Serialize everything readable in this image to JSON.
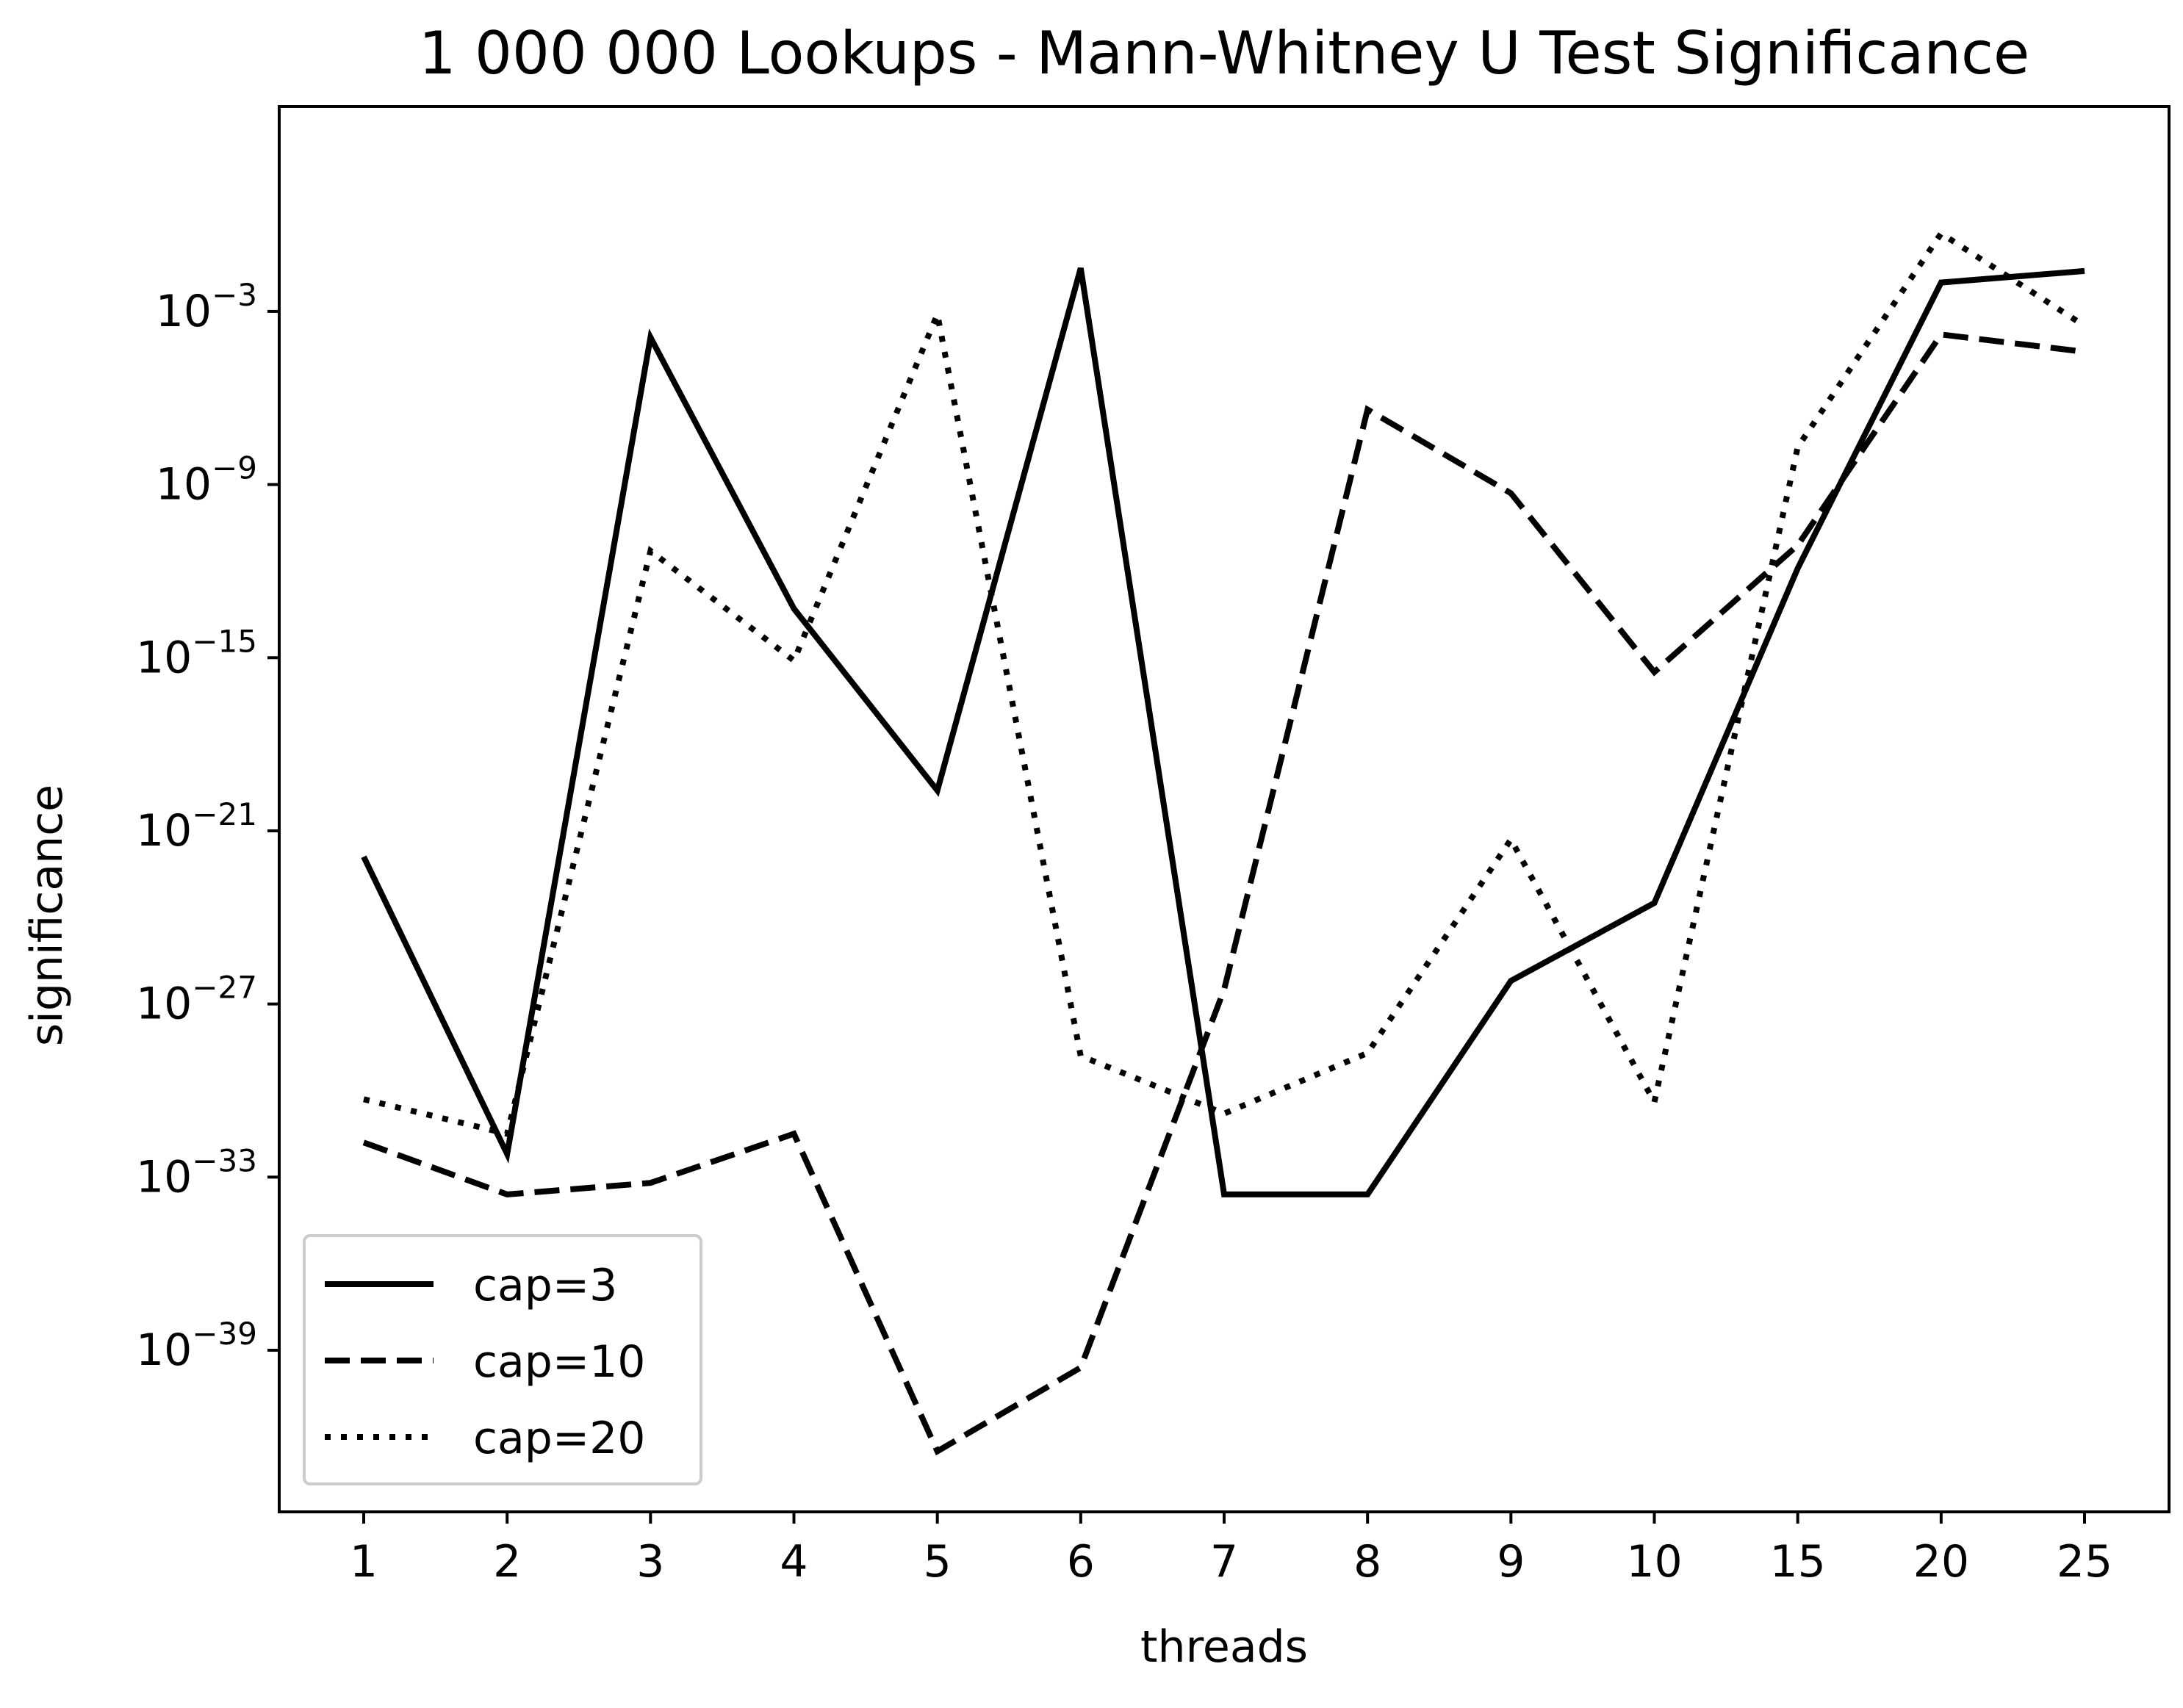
{
  "chart_data": {
    "type": "line",
    "title": "1 000 000 Lookups - Mann-Whitney U Test Significance",
    "xlabel": "threads",
    "ylabel": "significance",
    "categories": [
      "1",
      "2",
      "3",
      "4",
      "5",
      "6",
      "7",
      "8",
      "9",
      "10",
      "15",
      "20",
      "25"
    ],
    "y_scale": "log",
    "y_exponent_range": [
      -44.6,
      4.1
    ],
    "y_ticks": [
      {
        "exp": -3,
        "label": "10",
        "sup": "−3"
      },
      {
        "exp": -9,
        "label": "10",
        "sup": "−9"
      },
      {
        "exp": -15,
        "label": "10",
        "sup": "−15"
      },
      {
        "exp": -21,
        "label": "10",
        "sup": "−21"
      },
      {
        "exp": -27,
        "label": "10",
        "sup": "−27"
      },
      {
        "exp": -33,
        "label": "10",
        "sup": "−33"
      },
      {
        "exp": -39,
        "label": "10",
        "sup": "−39"
      }
    ],
    "grid": false,
    "legend_position": "bottom-left",
    "series": [
      {
        "name": "cap=3",
        "style": "solid",
        "color": "#000000",
        "log10_values": [
          -21.9,
          -32.2,
          -3.9,
          -13.3,
          -19.6,
          -1.5,
          -33.6,
          -33.6,
          -26.2,
          -23.5,
          -11.9,
          -2.0,
          -1.6
        ]
      },
      {
        "name": "cap=10",
        "style": "dashed",
        "color": "#000000",
        "log10_values": [
          -31.8,
          -33.6,
          -33.2,
          -31.5,
          -42.5,
          -39.6,
          -26.5,
          -6.4,
          -9.3,
          -15.5,
          -11.1,
          -3.8,
          -4.4
        ]
      },
      {
        "name": "cap=20",
        "style": "dotted",
        "color": "#000000",
        "log10_values": [
          -30.3,
          -31.5,
          -11.3,
          -15.1,
          -3.1,
          -28.8,
          -30.8,
          -28.7,
          -21.3,
          -30.4,
          -7.7,
          -0.3,
          -3.5
        ]
      }
    ]
  }
}
